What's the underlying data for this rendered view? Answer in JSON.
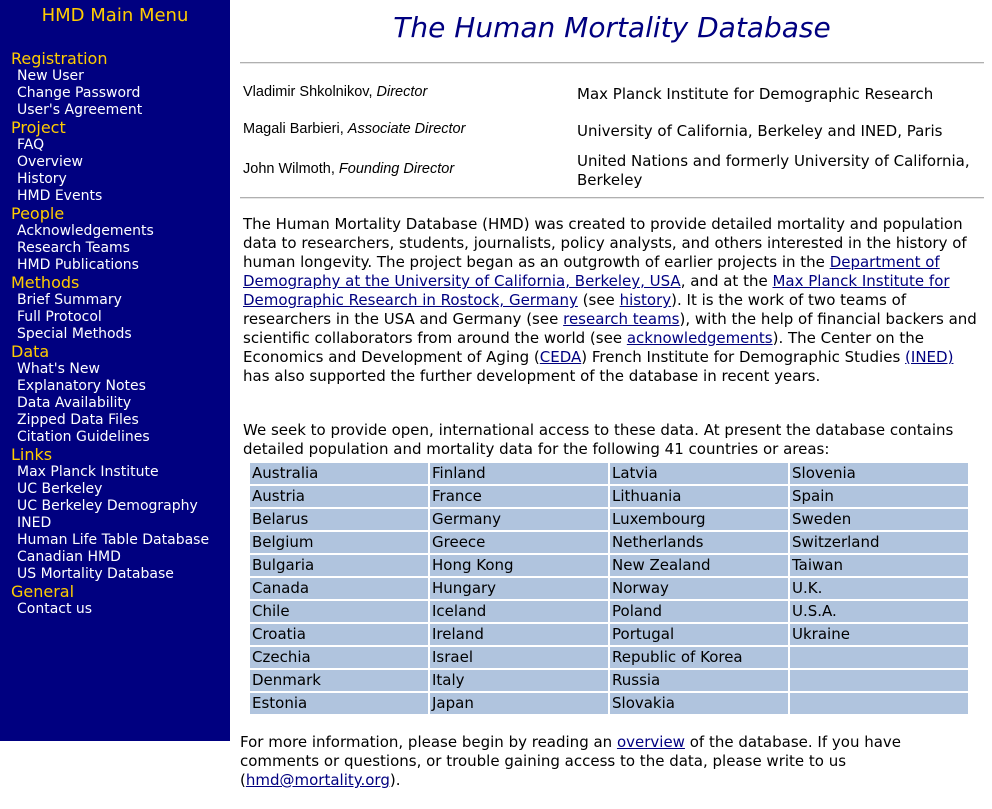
{
  "sidebar": {
    "title": "HMD Main Menu",
    "sections": [
      {
        "heading": "Registration",
        "items": [
          "New User",
          "Change Password",
          "User's Agreement"
        ]
      },
      {
        "heading": "Project",
        "items": [
          "FAQ",
          "Overview",
          "History",
          "HMD Events"
        ]
      },
      {
        "heading": "People",
        "items": [
          "Acknowledgements",
          "Research Teams",
          "HMD Publications"
        ]
      },
      {
        "heading": "Methods",
        "items": [
          "Brief Summary",
          "Full Protocol",
          "Special Methods"
        ]
      },
      {
        "heading": "Data",
        "items": [
          "What's New",
          "Explanatory Notes",
          "Data Availability",
          "Zipped Data Files",
          "Citation Guidelines"
        ]
      },
      {
        "heading": "Links",
        "items": [
          "Max Planck Institute",
          "UC Berkeley",
          "UC Berkeley Demography",
          "INED",
          "Human Life Table Database",
          "Canadian HMD",
          "US Mortality Database"
        ]
      },
      {
        "heading": "General",
        "items": [
          "Contact us"
        ]
      }
    ]
  },
  "main": {
    "title": "The Human Mortality Database",
    "directors": [
      {
        "name": "Vladimir Shkolnikov,",
        "role": "Director",
        "institution": "Max Planck Institute for Demographic Research"
      },
      {
        "name": "Magali Barbieri,",
        "role": "Associate Director",
        "institution": "University of California, Berkeley and INED, Paris"
      },
      {
        "name": "John Wilmoth,",
        "role": "Founding Director",
        "institution": "United Nations and formerly University of California, Berkeley"
      }
    ],
    "intro": {
      "t1": "The Human Mortality Database (HMD) was created to provide detailed mortality and population data to researchers, students, journalists, policy analysts, and others interested in the history of human longevity. The project began as an outgrowth of earlier projects in the ",
      "link_berkeley": "Department of Demography at the University of California, Berkeley, USA",
      "t2": ", and at the ",
      "link_mpi": "Max Planck Institute for Demographic Research in Rostock, Germany",
      "t3": " (see ",
      "link_history": "history",
      "t4": "). It is the work of two teams of researchers in the USA and Germany (see ",
      "link_teams": "research teams",
      "t5": "), with the help of financial backers and scientific collaborators from around the world (see ",
      "link_ack": "acknowledgements",
      "t6": "). The Center on the Economics and Development of Aging (",
      "link_ceda": "CEDA",
      "t7": ") French Institute for Demographic Studies ",
      "link_ined": "(INED)",
      "t8": " has also supported the further development of the database in recent years."
    },
    "intro2": "We seek to provide open, international access to these data. At present the database contains detailed population and mortality data for the following 41 countries or areas:",
    "countries": [
      [
        "Australia",
        "Finland",
        "Latvia",
        "Slovenia"
      ],
      [
        "Austria",
        "France",
        "Lithuania",
        "Spain"
      ],
      [
        "Belarus",
        "Germany",
        "Luxembourg",
        "Sweden"
      ],
      [
        "Belgium",
        "Greece",
        "Netherlands",
        "Switzerland"
      ],
      [
        "Bulgaria",
        "Hong Kong",
        "New Zealand",
        "Taiwan"
      ],
      [
        "Canada",
        "Hungary",
        "Norway",
        "U.K."
      ],
      [
        "Chile",
        "Iceland",
        "Poland",
        "U.S.A."
      ],
      [
        "Croatia",
        "Ireland",
        "Portugal",
        "Ukraine"
      ],
      [
        "Czechia",
        "Israel",
        "Republic of Korea",
        ""
      ],
      [
        "Denmark",
        "Italy",
        "Russia",
        ""
      ],
      [
        "Estonia",
        "Japan",
        "Slovakia",
        ""
      ]
    ],
    "outro": {
      "t1": "For more information, please begin by reading an ",
      "link_overview": "overview",
      "t2": " of the database. If you have comments or questions, or trouble gaining access to the data, please write to us (",
      "link_email": "hmd@mortality.org",
      "t3": ")."
    }
  }
}
